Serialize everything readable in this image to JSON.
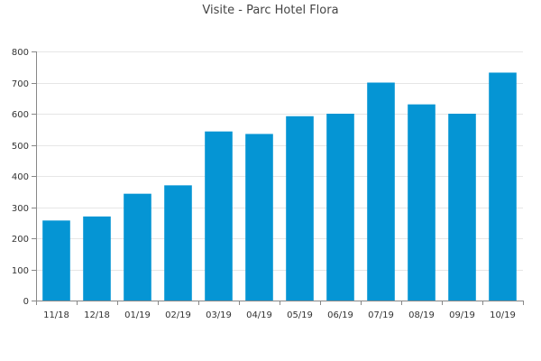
{
  "chart_data": {
    "type": "bar",
    "title": "Visite - Parc Hotel Flora",
    "categories": [
      "11/18",
      "12/18",
      "01/19",
      "02/19",
      "03/19",
      "04/19",
      "05/19",
      "06/19",
      "07/19",
      "08/19",
      "09/19",
      "10/19"
    ],
    "values": [
      257,
      270,
      343,
      370,
      543,
      535,
      592,
      600,
      700,
      630,
      600,
      732
    ],
    "ylim": [
      0,
      800
    ],
    "yticks": [
      0,
      100,
      200,
      300,
      400,
      500,
      600,
      700,
      800
    ],
    "grid": true,
    "bar_color": "#0595d4",
    "axis_color": "#888888",
    "grid_color": "#e6e6e6"
  }
}
